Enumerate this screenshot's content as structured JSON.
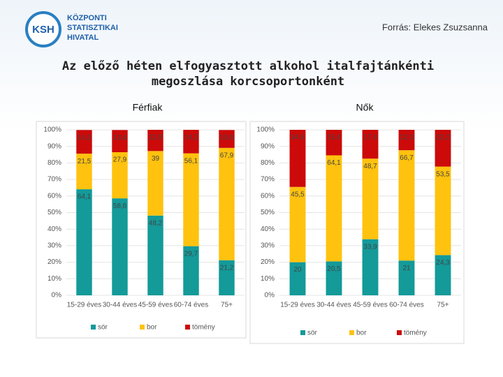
{
  "header": {
    "logo_mark": "KSH",
    "logo_lines": [
      "KÖZPONTI",
      "STATISZTIKAI",
      "HIVATAL"
    ],
    "source": "Forrás: Elekes Zsuzsanna",
    "title_lines": [
      "Az előző héten elfogyasztott alkohol italfajtánkénti",
      "megoszlása korcsoportonként"
    ]
  },
  "chart_data": [
    {
      "type": "stacked_bar",
      "title": "Férfiak",
      "categories": [
        "15-29 éves",
        "30-44 éves",
        "45-59 éves",
        "60-74 éves",
        "75+"
      ],
      "series": [
        {
          "name": "sör",
          "color": "#139a99",
          "values": [
            64.1,
            58.6,
            48.2,
            29.7,
            21.2
          ],
          "value_labels": [
            "64,1",
            "58,6",
            "48,2",
            "29,7",
            "21,2"
          ]
        },
        {
          "name": "bor",
          "color": "#ffc20e",
          "values": [
            21.5,
            27.9,
            39,
            56.1,
            67.9
          ],
          "value_labels": [
            "21,5",
            "27,9",
            "39",
            "56,1",
            "67,9"
          ]
        },
        {
          "name": "tömény",
          "color": "#cc0a0a",
          "values": [
            14.3,
            13.4,
            12.8,
            14.2,
            10.8
          ],
          "value_labels": [
            "14,3",
            "13,4",
            "12,8",
            "14,2",
            "10,8"
          ]
        }
      ],
      "ylim": [
        0,
        100
      ],
      "yticks": [
        {
          "value": 0,
          "label": "0%"
        },
        {
          "value": 10,
          "label": "10%"
        },
        {
          "value": 20,
          "label": "20%"
        },
        {
          "value": 30,
          "label": "30%"
        },
        {
          "value": 40,
          "label": "40%"
        },
        {
          "value": 50,
          "label": "50%"
        },
        {
          "value": 60,
          "label": "60%"
        },
        {
          "value": 70,
          "label": "70%"
        },
        {
          "value": 80,
          "label": "80%"
        },
        {
          "value": 90,
          "label": "90%"
        },
        {
          "value": 100,
          "label": "100%"
        }
      ],
      "grid": true,
      "legend": "bottom"
    },
    {
      "type": "stacked_bar",
      "title": "Nők",
      "categories": [
        "15-29 éves",
        "30-44 éves",
        "45-59 éves",
        "60-74 éves",
        "75+"
      ],
      "series": [
        {
          "name": "sör",
          "color": "#139a99",
          "values": [
            20,
            20.5,
            33.9,
            21,
            24.3
          ],
          "value_labels": [
            "20",
            "20,5",
            "33,9",
            "21",
            "24,3"
          ]
        },
        {
          "name": "bor",
          "color": "#ffc20e",
          "values": [
            45.5,
            64.1,
            48.7,
            66.7,
            53.5
          ],
          "value_labels": [
            "45,5",
            "64,1",
            "48,7",
            "66,7",
            "53,5"
          ]
        },
        {
          "name": "tömény",
          "color": "#cc0a0a",
          "values": [
            34.5,
            15.4,
            17.4,
            12.3,
            22.2
          ],
          "value_labels": [
            "34,5",
            "15,4",
            "17,4",
            "12,3",
            "22,2"
          ]
        }
      ],
      "ylim": [
        0,
        100
      ],
      "yticks": [
        {
          "value": 0,
          "label": "0%"
        },
        {
          "value": 10,
          "label": "10%"
        },
        {
          "value": 20,
          "label": "20%"
        },
        {
          "value": 30,
          "label": "30%"
        },
        {
          "value": 40,
          "label": "40%"
        },
        {
          "value": 50,
          "label": "50%"
        },
        {
          "value": 60,
          "label": "60%"
        },
        {
          "value": 70,
          "label": "70%"
        },
        {
          "value": 80,
          "label": "80%"
        },
        {
          "value": 90,
          "label": "90%"
        },
        {
          "value": 100,
          "label": "100%"
        }
      ],
      "grid": true,
      "legend": "bottom"
    }
  ]
}
